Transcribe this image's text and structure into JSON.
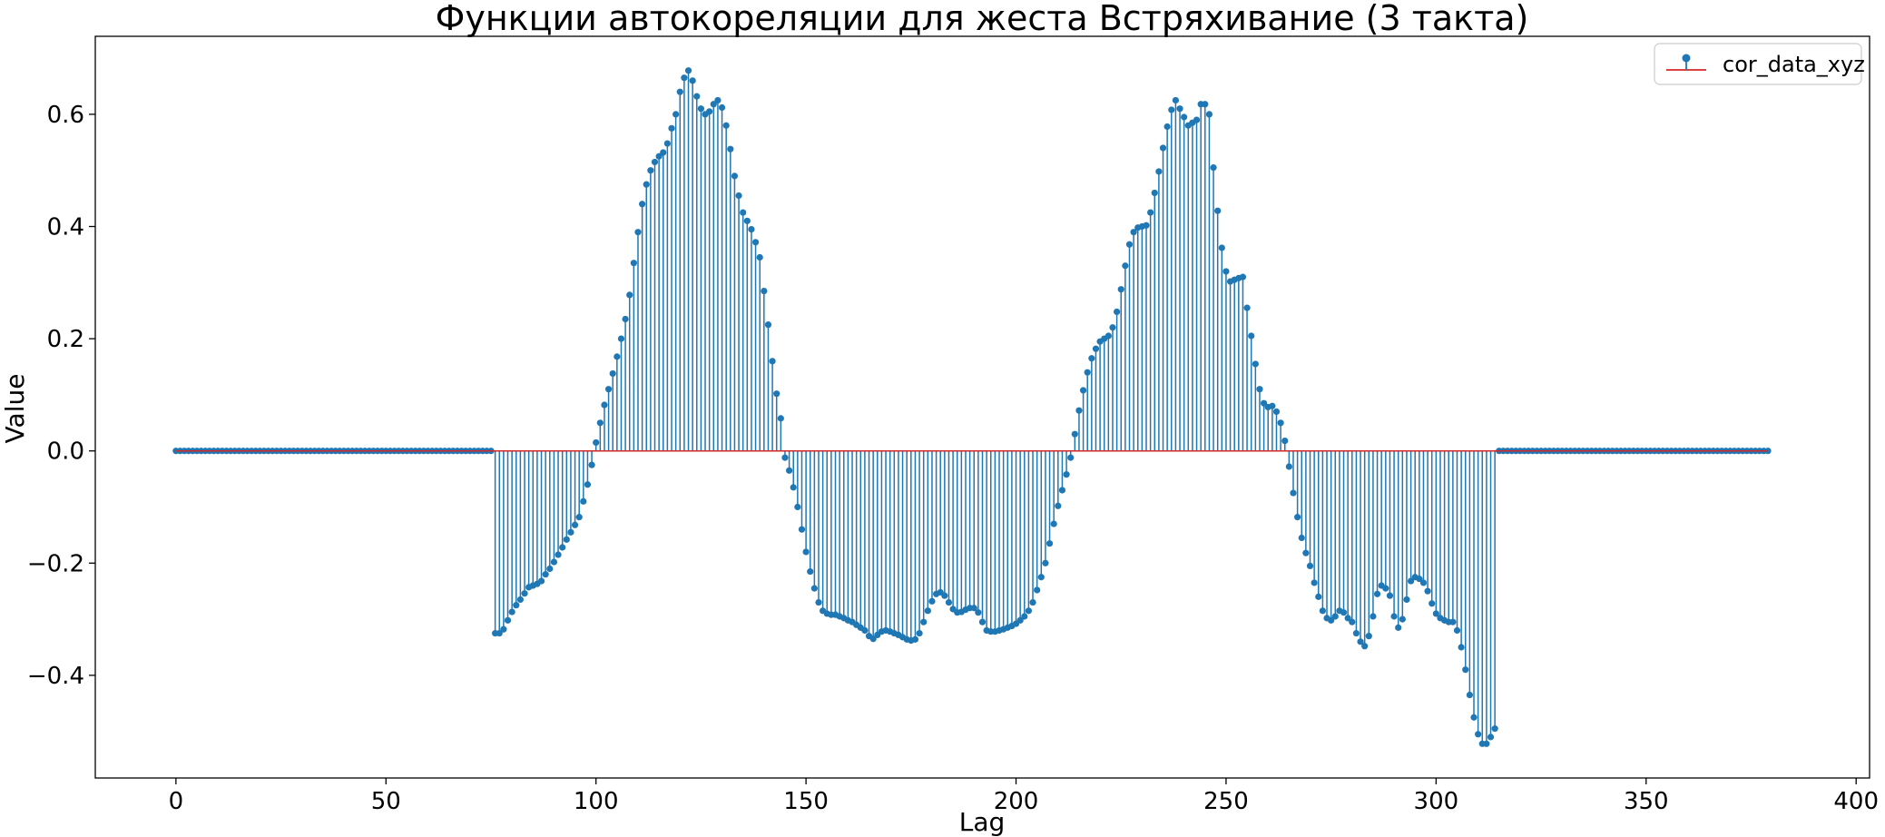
{
  "chart_data": {
    "type": "stem",
    "title": "Функции автокореляции для жеста Встряхивание (3 такта)",
    "xlabel": "Lag",
    "ylabel": "Value",
    "xlim": [
      -19.2,
      403.2
    ],
    "ylim": [
      -0.583,
      0.739
    ],
    "xticks": [
      0,
      50,
      100,
      150,
      200,
      250,
      300,
      350,
      400
    ],
    "xtick_labels": [
      "0",
      "50",
      "100",
      "150",
      "200",
      "250",
      "300",
      "350",
      "400"
    ],
    "yticks": [
      -0.4,
      -0.2,
      0.0,
      0.2,
      0.4,
      0.6
    ],
    "ytick_labels": [
      "−0.4",
      "−0.2",
      "0.0",
      "0.2",
      "0.4",
      "0.6"
    ],
    "legend": {
      "position": "top-right",
      "entries": [
        "cor_data_xyz"
      ]
    },
    "grid": false,
    "colors": {
      "stem": "#1f77b4",
      "baseline": "#d62728"
    },
    "series": [
      {
        "name": "cor_data_xyz",
        "x_start": 0,
        "x_step": 1,
        "values": [
          0,
          0,
          0,
          0,
          0,
          0,
          0,
          0,
          0,
          0,
          0,
          0,
          0,
          0,
          0,
          0,
          0,
          0,
          0,
          0,
          0,
          0,
          0,
          0,
          0,
          0,
          0,
          0,
          0,
          0,
          0,
          0,
          0,
          0,
          0,
          0,
          0,
          0,
          0,
          0,
          0,
          0,
          0,
          0,
          0,
          0,
          0,
          0,
          0,
          0,
          0,
          0,
          0,
          0,
          0,
          0,
          0,
          0,
          0,
          0,
          0,
          0,
          0,
          0,
          0,
          0,
          0,
          0,
          0,
          0,
          0,
          0,
          0,
          0,
          0,
          0,
          -0.325,
          -0.325,
          -0.318,
          -0.302,
          -0.287,
          -0.275,
          -0.265,
          -0.254,
          -0.243,
          -0.24,
          -0.237,
          -0.232,
          -0.22,
          -0.21,
          -0.198,
          -0.185,
          -0.172,
          -0.158,
          -0.145,
          -0.132,
          -0.118,
          -0.09,
          -0.06,
          -0.025,
          0.015,
          0.05,
          0.082,
          0.11,
          0.138,
          0.168,
          0.2,
          0.235,
          0.278,
          0.335,
          0.39,
          0.44,
          0.475,
          0.5,
          0.515,
          0.525,
          0.532,
          0.548,
          0.575,
          0.6,
          0.64,
          0.665,
          0.678,
          0.66,
          0.632,
          0.61,
          0.6,
          0.605,
          0.618,
          0.625,
          0.612,
          0.58,
          0.538,
          0.49,
          0.455,
          0.425,
          0.41,
          0.395,
          0.372,
          0.345,
          0.285,
          0.225,
          0.16,
          0.102,
          0.058,
          -0.012,
          -0.035,
          -0.065,
          -0.1,
          -0.14,
          -0.18,
          -0.215,
          -0.245,
          -0.27,
          -0.285,
          -0.29,
          -0.292,
          -0.292,
          -0.295,
          -0.298,
          -0.302,
          -0.305,
          -0.31,
          -0.315,
          -0.32,
          -0.33,
          -0.335,
          -0.328,
          -0.322,
          -0.32,
          -0.322,
          -0.325,
          -0.328,
          -0.332,
          -0.336,
          -0.338,
          -0.336,
          -0.325,
          -0.305,
          -0.285,
          -0.268,
          -0.255,
          -0.252,
          -0.258,
          -0.27,
          -0.282,
          -0.288,
          -0.287,
          -0.283,
          -0.28,
          -0.28,
          -0.288,
          -0.305,
          -0.32,
          -0.322,
          -0.322,
          -0.32,
          -0.318,
          -0.315,
          -0.312,
          -0.308,
          -0.302,
          -0.295,
          -0.285,
          -0.27,
          -0.248,
          -0.225,
          -0.2,
          -0.165,
          -0.13,
          -0.098,
          -0.07,
          -0.042,
          -0.012,
          0.03,
          0.072,
          0.108,
          0.14,
          0.165,
          0.182,
          0.195,
          0.2,
          0.205,
          0.22,
          0.248,
          0.288,
          0.33,
          0.368,
          0.39,
          0.398,
          0.4,
          0.402,
          0.425,
          0.46,
          0.498,
          0.54,
          0.578,
          0.608,
          0.625,
          0.61,
          0.595,
          0.58,
          0.585,
          0.59,
          0.618,
          0.618,
          0.6,
          0.505,
          0.428,
          0.362,
          0.32,
          0.302,
          0.305,
          0.308,
          0.31,
          0.255,
          0.205,
          0.155,
          0.11,
          0.085,
          0.078,
          0.08,
          0.07,
          0.05,
          0.018,
          -0.028,
          -0.075,
          -0.118,
          -0.155,
          -0.182,
          -0.205,
          -0.235,
          -0.26,
          -0.285,
          -0.298,
          -0.302,
          -0.295,
          -0.285,
          -0.288,
          -0.298,
          -0.305,
          -0.325,
          -0.34,
          -0.348,
          -0.33,
          -0.295,
          -0.255,
          -0.24,
          -0.245,
          -0.258,
          -0.295,
          -0.315,
          -0.3,
          -0.265,
          -0.232,
          -0.225,
          -0.228,
          -0.235,
          -0.25,
          -0.272,
          -0.29,
          -0.298,
          -0.302,
          -0.305,
          -0.305,
          -0.32,
          -0.35,
          -0.39,
          -0.435,
          -0.475,
          -0.505,
          -0.522,
          -0.522,
          -0.51,
          -0.495,
          0,
          0,
          0,
          0,
          0,
          0,
          0,
          0,
          0,
          0,
          0,
          0,
          0,
          0,
          0,
          0,
          0,
          0,
          0,
          0,
          0,
          0,
          0,
          0,
          0,
          0,
          0,
          0,
          0,
          0,
          0,
          0,
          0,
          0,
          0,
          0,
          0,
          0,
          0,
          0,
          0,
          0,
          0,
          0,
          0,
          0,
          0,
          0,
          0,
          0,
          0,
          0,
          0,
          0,
          0,
          0,
          0,
          0,
          0,
          0,
          0,
          0,
          0,
          0,
          0
        ]
      }
    ]
  }
}
